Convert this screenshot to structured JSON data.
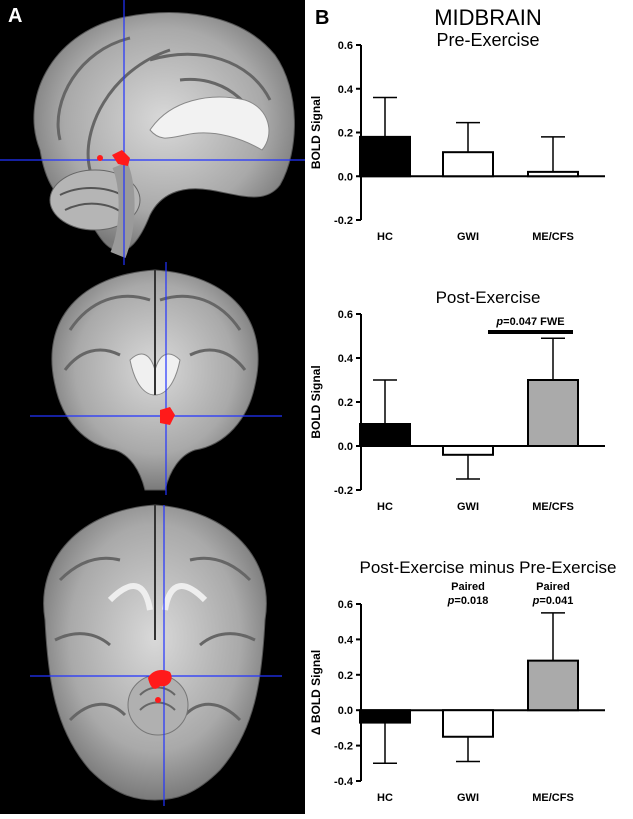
{
  "panel_a": {
    "letter": "A",
    "views": [
      "sagittal",
      "coronal",
      "axial"
    ],
    "colors": {
      "background": "#000000",
      "crosshair": "#2233ff",
      "cluster": "#ff1a1a"
    }
  },
  "panel_b": {
    "letter": "B",
    "title": "MIDBRAIN"
  },
  "chart_data": [
    {
      "type": "bar",
      "title": "Pre-Exercise",
      "ylabel": "BOLD Signal",
      "categories": [
        "HC",
        "GWI",
        "ME/CFS"
      ],
      "values": [
        0.18,
        0.11,
        0.02
      ],
      "errors": [
        0.18,
        0.135,
        0.16
      ],
      "bar_colors": [
        "#000000",
        "#ffffff",
        "#ffffff"
      ],
      "ylim": [
        -0.2,
        0.6
      ],
      "yticks": [
        0.6,
        0.4,
        0.2,
        0.0,
        -0.2
      ],
      "ytick_labels": [
        "0.6",
        "0.4",
        "0.2",
        "0.0",
        "-0.2"
      ],
      "annotations": []
    },
    {
      "type": "bar",
      "title": "Post-Exercise",
      "ylabel": "BOLD Signal",
      "categories": [
        "HC",
        "GWI",
        "ME/CFS"
      ],
      "values": [
        0.1,
        -0.04,
        0.3
      ],
      "errors": [
        0.2,
        0.11,
        0.19
      ],
      "bar_colors": [
        "#000000",
        "#ffffff",
        "#aaaaaa"
      ],
      "ylim": [
        -0.2,
        0.6
      ],
      "yticks": [
        0.6,
        0.4,
        0.2,
        0.0,
        -0.2
      ],
      "ytick_labels": [
        "0.6",
        "0.4",
        "0.2",
        "0.0",
        "-0.2"
      ],
      "annotations": [
        {
          "p_label": "p",
          "text": "=0.047 FWE",
          "bracket_from": "GWI",
          "bracket_to": "ME/CFS"
        }
      ]
    },
    {
      "type": "bar",
      "title": "Post-Exercise minus Pre-Exercise",
      "ylabel": "Δ BOLD Signal",
      "categories": [
        "HC",
        "GWI",
        "ME/CFS"
      ],
      "values": [
        -0.07,
        -0.15,
        0.28
      ],
      "errors": [
        0.23,
        0.14,
        0.27
      ],
      "bar_colors": [
        "#000000",
        "#ffffff",
        "#aaaaaa"
      ],
      "ylim": [
        -0.4,
        0.6
      ],
      "yticks": [
        0.6,
        0.4,
        0.2,
        0.0,
        -0.2,
        -0.4
      ],
      "ytick_labels": [
        "0.6",
        "0.4",
        "0.2",
        "0.0",
        "-0.2",
        "-0.4"
      ],
      "annotations": [
        {
          "category": "GWI",
          "line1": "Paired",
          "p_label": "p",
          "text": "=0.018"
        },
        {
          "category": "ME/CFS",
          "line1": "Paired",
          "p_label": "p",
          "text": "=0.041"
        }
      ]
    }
  ]
}
